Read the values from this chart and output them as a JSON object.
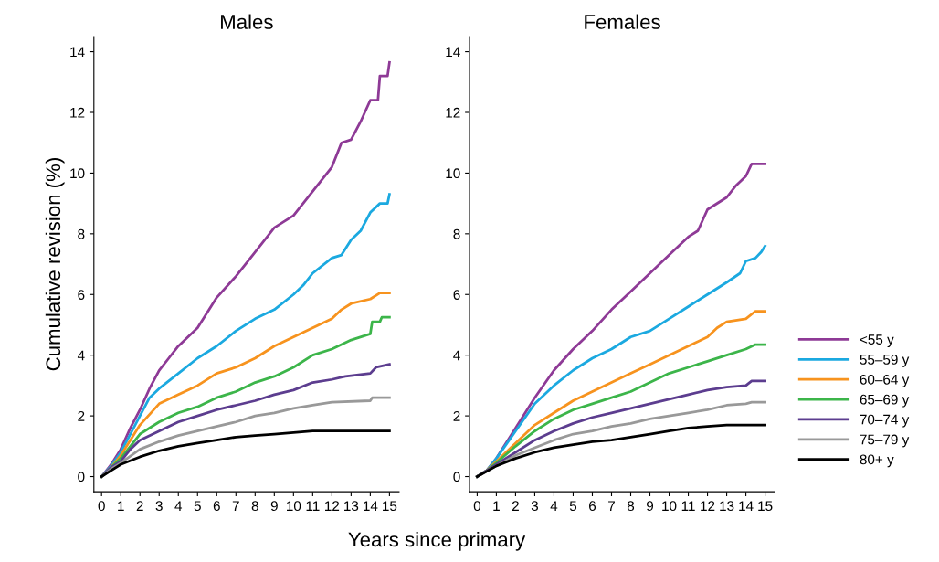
{
  "chart_data": [
    {
      "type": "line",
      "title": "Males",
      "ylabel": "Cumulative revision (%)",
      "xlabel": "Years since primary",
      "xlim": [
        -0.4,
        15.5
      ],
      "ylim": [
        -0.5,
        14.5
      ],
      "xticks": [
        0,
        1,
        2,
        3,
        4,
        5,
        6,
        7,
        8,
        9,
        10,
        11,
        12,
        13,
        14,
        15
      ],
      "yticks": [
        0,
        2,
        4,
        6,
        8,
        10,
        12,
        14
      ],
      "grid": false,
      "legend": false,
      "series": [
        {
          "color": "#8e3a96",
          "x": [
            0,
            0.5,
            1,
            1.5,
            2,
            2.5,
            3,
            3.5,
            4,
            5,
            6,
            7,
            8,
            9,
            10,
            11,
            12,
            12.5,
            13,
            13.5,
            14,
            14.4,
            14.5,
            14.9,
            15
          ],
          "values": [
            0,
            0.4,
            0.9,
            1.6,
            2.2,
            2.9,
            3.5,
            3.9,
            4.3,
            4.9,
            5.9,
            6.6,
            7.4,
            8.2,
            8.6,
            9.4,
            10.2,
            11.0,
            11.1,
            11.7,
            12.4,
            12.4,
            13.2,
            13.2,
            13.65
          ]
        },
        {
          "color": "#1ba9e0",
          "x": [
            0,
            0.5,
            1,
            1.5,
            2,
            2.5,
            3,
            4,
            5,
            6,
            7,
            8,
            9,
            10,
            10.5,
            11,
            12,
            12.5,
            13,
            13.5,
            14,
            14.5,
            14.9,
            15
          ],
          "values": [
            0,
            0.35,
            0.8,
            1.4,
            2.0,
            2.6,
            2.9,
            3.4,
            3.9,
            4.3,
            4.8,
            5.2,
            5.5,
            6.0,
            6.3,
            6.7,
            7.2,
            7.3,
            7.8,
            8.1,
            8.7,
            9.0,
            9.0,
            9.3
          ]
        },
        {
          "color": "#f7931e",
          "x": [
            0,
            0.5,
            1,
            1.5,
            2,
            3,
            4,
            5,
            6,
            7,
            8,
            9,
            10,
            11,
            12,
            12.5,
            13,
            14,
            14.5,
            15
          ],
          "values": [
            0,
            0.3,
            0.7,
            1.2,
            1.7,
            2.4,
            2.7,
            3.0,
            3.4,
            3.6,
            3.9,
            4.3,
            4.6,
            4.9,
            5.2,
            5.5,
            5.7,
            5.85,
            6.05,
            6.05
          ]
        },
        {
          "color": "#3cb54a",
          "x": [
            0,
            0.5,
            1,
            1.5,
            2,
            3,
            4,
            5,
            6,
            7,
            8,
            9,
            10,
            11,
            12,
            13,
            14,
            14.1,
            14.5,
            14.6,
            15
          ],
          "values": [
            0,
            0.3,
            0.6,
            1.0,
            1.4,
            1.8,
            2.1,
            2.3,
            2.6,
            2.8,
            3.1,
            3.3,
            3.6,
            4.0,
            4.2,
            4.5,
            4.7,
            5.1,
            5.1,
            5.25,
            5.25
          ]
        },
        {
          "color": "#5c3d8f",
          "x": [
            0,
            0.5,
            1,
            1.5,
            2,
            3,
            4,
            5,
            6,
            7,
            8,
            9,
            10,
            11,
            12,
            12.7,
            14,
            14.3,
            15
          ],
          "values": [
            0,
            0.3,
            0.5,
            0.9,
            1.2,
            1.5,
            1.8,
            2.0,
            2.2,
            2.35,
            2.5,
            2.7,
            2.85,
            3.1,
            3.2,
            3.3,
            3.4,
            3.6,
            3.7
          ]
        },
        {
          "color": "#999999",
          "x": [
            0,
            0.5,
            1,
            2,
            3,
            4,
            5,
            6,
            7,
            8,
            9,
            10,
            11,
            12,
            14,
            14.1,
            15
          ],
          "values": [
            0,
            0.25,
            0.45,
            0.9,
            1.15,
            1.35,
            1.5,
            1.65,
            1.8,
            2.0,
            2.1,
            2.25,
            2.35,
            2.45,
            2.5,
            2.6,
            2.6
          ]
        },
        {
          "color": "#000000",
          "x": [
            0,
            0.5,
            1,
            2,
            3,
            4,
            5,
            6,
            7,
            8,
            9,
            10,
            11,
            15
          ],
          "values": [
            0,
            0.2,
            0.4,
            0.65,
            0.85,
            1.0,
            1.1,
            1.2,
            1.3,
            1.35,
            1.4,
            1.45,
            1.5,
            1.5
          ]
        }
      ]
    },
    {
      "type": "line",
      "title": "Females",
      "xlim": [
        -0.4,
        15.5
      ],
      "ylim": [
        -0.5,
        14.5
      ],
      "xticks": [
        0,
        1,
        2,
        3,
        4,
        5,
        6,
        7,
        8,
        9,
        10,
        11,
        12,
        13,
        14,
        15
      ],
      "yticks": [
        0,
        2,
        4,
        6,
        8,
        10,
        12,
        14
      ],
      "grid": false,
      "legend": "right",
      "series": [
        {
          "name": "<55 y",
          "color": "#8e3a96",
          "x": [
            0,
            0.5,
            1,
            2,
            3,
            4,
            5,
            6,
            7,
            8,
            9,
            10,
            11,
            11.5,
            12,
            13,
            13.5,
            14,
            14.3,
            15
          ],
          "values": [
            0,
            0.2,
            0.6,
            1.6,
            2.6,
            3.5,
            4.2,
            4.8,
            5.5,
            6.1,
            6.7,
            7.3,
            7.9,
            8.1,
            8.8,
            9.2,
            9.6,
            9.9,
            10.3,
            10.3
          ]
        },
        {
          "name": "55–59 y",
          "color": "#1ba9e0",
          "x": [
            0,
            0.5,
            1,
            2,
            3,
            4,
            5,
            6,
            7,
            8,
            9,
            10,
            11,
            12,
            13,
            13.7,
            14,
            14.5,
            14.8,
            15
          ],
          "values": [
            0,
            0.2,
            0.6,
            1.5,
            2.4,
            3.0,
            3.5,
            3.9,
            4.2,
            4.6,
            4.8,
            5.2,
            5.6,
            6.0,
            6.4,
            6.7,
            7.1,
            7.2,
            7.4,
            7.6
          ]
        },
        {
          "name": "60–64 y",
          "color": "#f7931e",
          "x": [
            0,
            0.5,
            1,
            2,
            3,
            4,
            5,
            6,
            7,
            8,
            9,
            10,
            11,
            12,
            12.5,
            13,
            14,
            14.5,
            15
          ],
          "values": [
            0,
            0.2,
            0.5,
            1.1,
            1.7,
            2.1,
            2.5,
            2.8,
            3.1,
            3.4,
            3.7,
            4.0,
            4.3,
            4.6,
            4.9,
            5.1,
            5.2,
            5.45,
            5.45
          ]
        },
        {
          "name": "65–69 y",
          "color": "#3cb54a",
          "x": [
            0,
            0.5,
            1,
            2,
            3,
            4,
            5,
            6,
            7,
            8,
            9,
            10,
            11,
            12,
            13,
            14,
            14.5,
            15
          ],
          "values": [
            0,
            0.2,
            0.45,
            1.0,
            1.5,
            1.9,
            2.2,
            2.4,
            2.6,
            2.8,
            3.1,
            3.4,
            3.6,
            3.8,
            4.0,
            4.2,
            4.35,
            4.35
          ]
        },
        {
          "name": "70–74 y",
          "color": "#5c3d8f",
          "x": [
            0,
            1,
            2,
            3,
            4,
            5,
            6,
            7,
            8,
            9,
            10,
            11,
            12,
            13,
            14,
            14.3,
            15
          ],
          "values": [
            0,
            0.4,
            0.8,
            1.2,
            1.5,
            1.75,
            1.95,
            2.1,
            2.25,
            2.4,
            2.55,
            2.7,
            2.85,
            2.95,
            3.0,
            3.15,
            3.15
          ]
        },
        {
          "name": "75–79 y",
          "color": "#999999",
          "x": [
            0,
            1,
            2,
            3,
            4,
            5,
            6,
            7,
            8,
            9,
            10,
            11,
            12,
            13,
            14,
            14.3,
            15
          ],
          "values": [
            0,
            0.35,
            0.7,
            0.95,
            1.2,
            1.4,
            1.5,
            1.65,
            1.75,
            1.9,
            2.0,
            2.1,
            2.2,
            2.35,
            2.4,
            2.45,
            2.45
          ]
        },
        {
          "name": "80+ y",
          "color": "#000000",
          "x": [
            0,
            1,
            2,
            3,
            4,
            5,
            6,
            7,
            8,
            9,
            10,
            11,
            12,
            13,
            15
          ],
          "values": [
            0,
            0.35,
            0.6,
            0.8,
            0.95,
            1.05,
            1.15,
            1.2,
            1.3,
            1.4,
            1.5,
            1.6,
            1.65,
            1.7,
            1.7
          ]
        }
      ]
    }
  ]
}
